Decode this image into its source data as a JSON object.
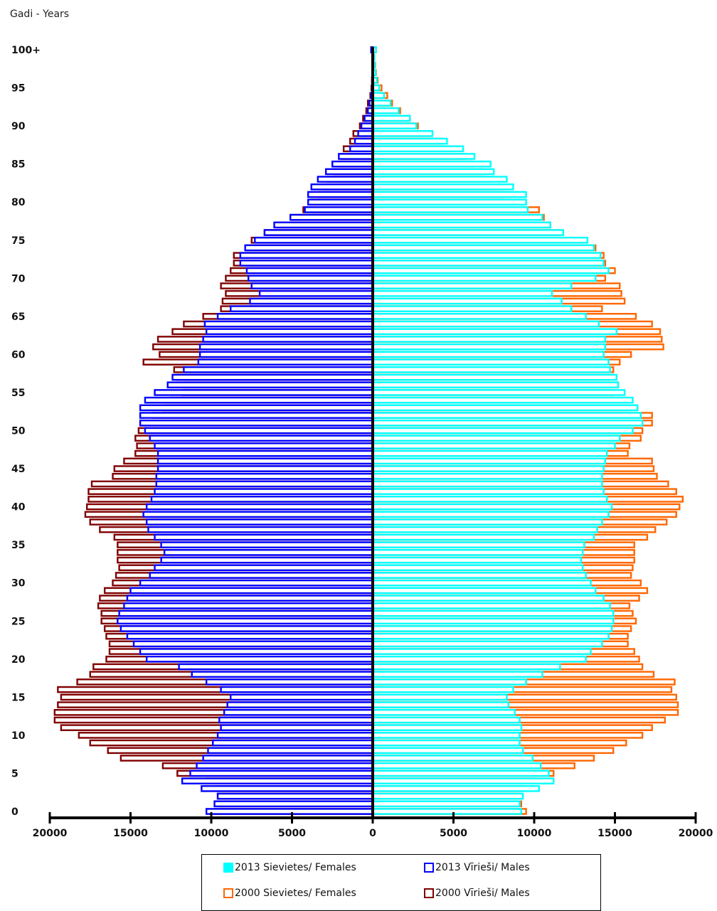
{
  "chart_data": {
    "type": "bar",
    "subtype": "population-pyramid",
    "ylabel": "Gadi - Years",
    "xlim": [
      -20000,
      20000
    ],
    "x_ticks": [
      "20000",
      "15000",
      "10000",
      "5000",
      "0",
      "5000",
      "10000",
      "15000",
      "20000"
    ],
    "y_ticks": [
      "0",
      "5",
      "10",
      "15",
      "20",
      "25",
      "30",
      "35",
      "40",
      "45",
      "50",
      "55",
      "60",
      "65",
      "70",
      "75",
      "80",
      "85",
      "90",
      "95",
      "100+"
    ],
    "ages": [
      "0",
      "1",
      "2",
      "3",
      "4",
      "5",
      "6",
      "7",
      "8",
      "9",
      "10",
      "11",
      "12",
      "13",
      "14",
      "15",
      "16",
      "17",
      "18",
      "19",
      "20",
      "21",
      "22",
      "23",
      "24",
      "25",
      "26",
      "27",
      "28",
      "29",
      "30",
      "31",
      "32",
      "33",
      "34",
      "35",
      "36",
      "37",
      "38",
      "39",
      "40",
      "41",
      "42",
      "43",
      "44",
      "45",
      "46",
      "47",
      "48",
      "49",
      "50",
      "51",
      "52",
      "53",
      "54",
      "55",
      "56",
      "57",
      "58",
      "59",
      "60",
      "61",
      "62",
      "63",
      "64",
      "65",
      "66",
      "67",
      "68",
      "69",
      "70",
      "71",
      "72",
      "73",
      "74",
      "75",
      "76",
      "77",
      "78",
      "79",
      "80",
      "81",
      "82",
      "83",
      "84",
      "85",
      "86",
      "87",
      "88",
      "89",
      "90",
      "91",
      "92",
      "93",
      "94",
      "95",
      "96",
      "97",
      "98",
      "99",
      "100+"
    ],
    "legend_position": "bottom",
    "series": [
      {
        "name": "2013 Sievietes/ Females",
        "side": "right",
        "color": "#00ffff",
        "values": [
          9200,
          9100,
          9300,
          10300,
          11200,
          10900,
          10400,
          9900,
          9300,
          9100,
          9100,
          9200,
          9100,
          8800,
          8400,
          8300,
          8700,
          9500,
          10500,
          11600,
          13200,
          13500,
          14200,
          14600,
          14800,
          14900,
          14900,
          14700,
          14300,
          13800,
          13500,
          13200,
          13000,
          12900,
          13000,
          13100,
          13700,
          13900,
          14200,
          14600,
          14800,
          14500,
          14300,
          14200,
          14200,
          14300,
          14400,
          14500,
          15000,
          15300,
          16100,
          16700,
          16600,
          16400,
          16100,
          15600,
          15200,
          15100,
          14700,
          14600,
          14300,
          14400,
          14400,
          15100,
          14000,
          13200,
          12300,
          11700,
          11100,
          12300,
          13800,
          14600,
          14300,
          14100,
          13700,
          13300,
          11800,
          11000,
          10500,
          9600,
          9500,
          9500,
          8700,
          8300,
          7500,
          7300,
          6300,
          5600,
          4600,
          3700,
          2700,
          2300,
          1600,
          1100,
          700,
          400,
          250,
          180,
          130,
          100,
          200
        ]
      },
      {
        "name": "2013 Vīrieši/ Males",
        "side": "left",
        "color": "#0000ff",
        "values": [
          10300,
          9800,
          9600,
          10600,
          11800,
          11300,
          10900,
          10500,
          10200,
          9900,
          9600,
          9400,
          9500,
          9200,
          9000,
          8800,
          9400,
          10300,
          11200,
          12000,
          14000,
          14400,
          14800,
          15200,
          15600,
          15800,
          15700,
          15400,
          15200,
          15000,
          14400,
          13800,
          13500,
          13100,
          12900,
          13100,
          13500,
          13900,
          14000,
          14200,
          14000,
          13700,
          13500,
          13400,
          13400,
          13300,
          13300,
          13300,
          13500,
          13800,
          14100,
          14400,
          14400,
          14400,
          14100,
          13500,
          12700,
          12400,
          11700,
          10800,
          10700,
          10700,
          10500,
          10300,
          10400,
          9600,
          8800,
          7600,
          7000,
          7500,
          7700,
          7800,
          8200,
          8200,
          7900,
          7300,
          6700,
          6100,
          5100,
          4200,
          4000,
          4000,
          3800,
          3400,
          2900,
          2500,
          2100,
          1400,
          1100,
          900,
          700,
          500,
          300,
          200,
          100,
          50,
          40,
          30,
          20,
          10,
          100
        ]
      },
      {
        "name": "2000 Sievietes/ Females",
        "side": "right",
        "color": "#ff6600",
        "values": [
          9500,
          9200,
          9100,
          9300,
          10100,
          11200,
          12500,
          13700,
          14900,
          15700,
          16700,
          17300,
          18100,
          18900,
          18900,
          18800,
          18500,
          18700,
          17400,
          16700,
          16500,
          16200,
          15800,
          15800,
          16000,
          16300,
          16100,
          15900,
          16500,
          17000,
          16600,
          16000,
          16100,
          16200,
          16200,
          16200,
          17000,
          17500,
          18200,
          18800,
          19000,
          19200,
          18800,
          18300,
          17600,
          17400,
          17300,
          15800,
          15900,
          16600,
          16700,
          17300,
          17300,
          15900,
          15800,
          14900,
          15200,
          14600,
          14900,
          15300,
          16000,
          18000,
          17900,
          17800,
          17300,
          16300,
          14200,
          15600,
          15400,
          15300,
          14400,
          15000,
          14400,
          14300,
          13800,
          12800,
          11600,
          11000,
          10600,
          10300,
          8000,
          8500,
          8000,
          7400,
          6900,
          6200,
          5700,
          5000,
          4300,
          3600,
          2800,
          2300,
          1700,
          1200,
          900,
          550,
          300,
          200,
          150,
          100,
          200
        ]
      },
      {
        "name": "2000 Vīrieši/ Males",
        "side": "left",
        "color": "#800000",
        "values": [
          9800,
          9500,
          9600,
          9700,
          10300,
          12100,
          13000,
          15600,
          16400,
          17500,
          18200,
          19300,
          19700,
          19700,
          19500,
          19300,
          19500,
          18300,
          17500,
          17300,
          16500,
          16300,
          16300,
          16500,
          16600,
          16800,
          16800,
          17000,
          16900,
          16600,
          16100,
          15900,
          15700,
          15800,
          15800,
          15800,
          16000,
          16900,
          17500,
          17800,
          17700,
          17600,
          17600,
          17400,
          16100,
          16000,
          15400,
          14700,
          14600,
          14700,
          14500,
          14400,
          13600,
          13000,
          12500,
          11800,
          11600,
          12100,
          12300,
          14200,
          13200,
          13600,
          13300,
          12400,
          11700,
          10500,
          9400,
          9300,
          9100,
          9400,
          9100,
          8800,
          8600,
          8600,
          7800,
          7500,
          6700,
          5900,
          5000,
          4300,
          3800,
          3300,
          3100,
          2800,
          2400,
          2100,
          1900,
          1800,
          1400,
          1200,
          800,
          600,
          400,
          300,
          150,
          80,
          50,
          30,
          20,
          10,
          100
        ]
      }
    ]
  }
}
